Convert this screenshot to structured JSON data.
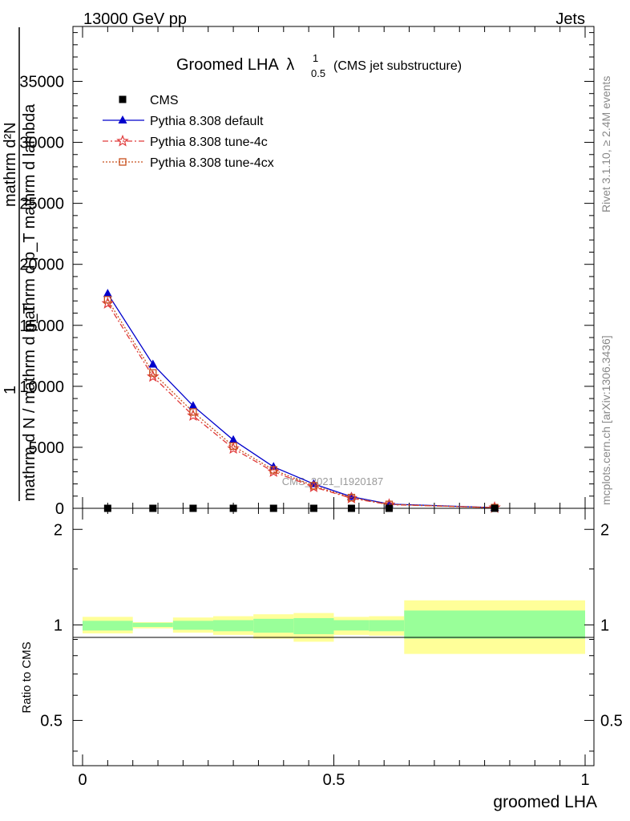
{
  "header": {
    "left": "13000 GeV pp",
    "right": "Jets"
  },
  "side_labels": {
    "rivet": "Rivet 3.1.10, ≥ 2.4M events",
    "mcplots": "mcplots.cern.ch [arXiv:1306.3436]"
  },
  "colors": {
    "cms": "#000000",
    "default": "#0000cc",
    "tune4c": "#e03a3a",
    "tune4cx": "#c8501e",
    "band_inner": "#99ff99",
    "band_outer": "#ffff99"
  },
  "chart_data": [
    {
      "type": "line",
      "title": "Groomed LHA",
      "title_symbol": "λ",
      "title_sup": "1",
      "title_sub": "0.5",
      "subtitle": "(CMS jet substructure)",
      "watermark": "CMS_2021_I1920187",
      "ylabel_top": "mathrm d²N",
      "ylabel_bottom": "mathrm d p_T mathrm d lambda",
      "ylabel_prefix": "1",
      "ylabel_norm": "mathrm d N / mathrm d p_T",
      "xlim": [
        0,
        1
      ],
      "ylim": [
        0,
        39500
      ],
      "yticks": [
        0,
        5000,
        10000,
        15000,
        20000,
        25000,
        30000,
        35000
      ],
      "ytick_labels": [
        "0",
        "5000",
        "10000",
        "15000",
        "20000",
        "25000",
        "30000",
        "35000"
      ],
      "series": [
        {
          "name": "CMS",
          "marker": "square",
          "x": [
            0.05,
            0.14,
            0.22,
            0.3,
            0.38,
            0.46,
            0.535,
            0.61,
            0.82
          ],
          "y": [
            0,
            0,
            0,
            0,
            0,
            0,
            0,
            0,
            0
          ]
        },
        {
          "name": "Pythia 8.308 default",
          "marker": "triangle",
          "x": [
            0.05,
            0.14,
            0.22,
            0.3,
            0.38,
            0.46,
            0.535,
            0.61,
            0.82
          ],
          "y": [
            17600,
            11800,
            8400,
            5600,
            3400,
            2000,
            950,
            350,
            60
          ]
        },
        {
          "name": "Pythia 8.308 tune-4c",
          "marker": "star",
          "x": [
            0.05,
            0.14,
            0.22,
            0.3,
            0.38,
            0.46,
            0.535,
            0.61,
            0.82
          ],
          "y": [
            16800,
            10800,
            7600,
            4900,
            3000,
            1750,
            830,
            300,
            50
          ]
        },
        {
          "name": "Pythia 8.308 tune-4cx",
          "marker": "open-square",
          "x": [
            0.05,
            0.14,
            0.22,
            0.3,
            0.38,
            0.46,
            0.535,
            0.61,
            0.82
          ],
          "y": [
            17100,
            11100,
            7900,
            5100,
            3150,
            1850,
            880,
            320,
            55
          ]
        }
      ]
    },
    {
      "type": "area",
      "xlabel": "groomed LHA",
      "ylabel": "Ratio to CMS",
      "xlim": [
        0,
        1
      ],
      "ylim": [
        0.36,
        2.33
      ],
      "xticks": [
        0,
        0.5,
        1
      ],
      "xtick_labels": [
        "0",
        "0.5",
        "1"
      ],
      "yticks": [
        0.5,
        1,
        2
      ],
      "ytick_labels": [
        "0.5",
        "1",
        "2"
      ],
      "bins": [
        {
          "x0": 0.0,
          "x1": 0.1,
          "inner": [
            0.96,
            1.03
          ],
          "outer": [
            0.94,
            1.06
          ]
        },
        {
          "x0": 0.1,
          "x1": 0.18,
          "inner": [
            0.985,
            1.015
          ],
          "outer": [
            0.975,
            1.02
          ]
        },
        {
          "x0": 0.18,
          "x1": 0.26,
          "inner": [
            0.965,
            1.03
          ],
          "outer": [
            0.945,
            1.055
          ]
        },
        {
          "x0": 0.26,
          "x1": 0.34,
          "inner": [
            0.955,
            1.035
          ],
          "outer": [
            0.93,
            1.065
          ]
        },
        {
          "x0": 0.34,
          "x1": 0.42,
          "inner": [
            0.945,
            1.045
          ],
          "outer": [
            0.905,
            1.08
          ]
        },
        {
          "x0": 0.42,
          "x1": 0.5,
          "inner": [
            0.935,
            1.05
          ],
          "outer": [
            0.885,
            1.09
          ]
        },
        {
          "x0": 0.5,
          "x1": 0.57,
          "inner": [
            0.96,
            1.035
          ],
          "outer": [
            0.93,
            1.06
          ]
        },
        {
          "x0": 0.57,
          "x1": 0.64,
          "inner": [
            0.955,
            1.035
          ],
          "outer": [
            0.925,
            1.065
          ]
        },
        {
          "x0": 0.64,
          "x1": 1.0,
          "inner": [
            0.905,
            1.11
          ],
          "outer": [
            0.81,
            1.195
          ]
        }
      ]
    }
  ]
}
